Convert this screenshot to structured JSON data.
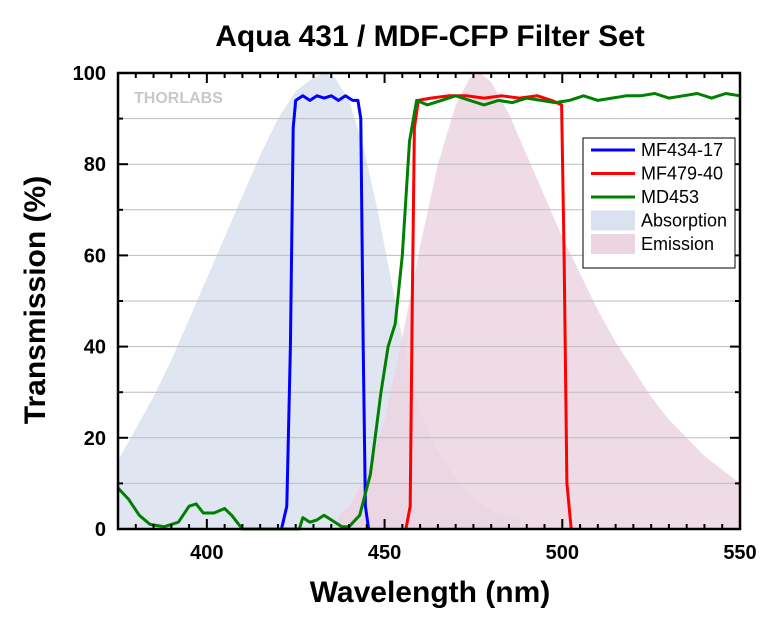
{
  "chart_data": {
    "type": "line",
    "title": "Aqua 431 / MDF-CFP Filter Set",
    "xlabel": "Wavelength (nm)",
    "ylabel": "Transmission (%)",
    "xlim": [
      375,
      550
    ],
    "ylim": [
      0,
      100
    ],
    "xticks": [
      400,
      450,
      500,
      550
    ],
    "yticks": [
      0,
      20,
      40,
      60,
      80,
      100
    ],
    "grid": true,
    "legend_position": "top-right",
    "watermark": "THORLABS",
    "series": [
      {
        "name": "MF434-17",
        "kind": "line",
        "color": "#0000ff",
        "points": [
          [
            421,
            0
          ],
          [
            422.5,
            5
          ],
          [
            423.5,
            40
          ],
          [
            424.3,
            88
          ],
          [
            425,
            94
          ],
          [
            427,
            95
          ],
          [
            429,
            94
          ],
          [
            431,
            95
          ],
          [
            433,
            94.5
          ],
          [
            435,
            95
          ],
          [
            437,
            94
          ],
          [
            439,
            95
          ],
          [
            441,
            94
          ],
          [
            442.5,
            94
          ],
          [
            443.3,
            90
          ],
          [
            444,
            40
          ],
          [
            444.6,
            5
          ],
          [
            445.5,
            0
          ]
        ]
      },
      {
        "name": "MF479-40",
        "kind": "line",
        "color": "#ff0000",
        "points": [
          [
            456,
            0
          ],
          [
            457.2,
            5
          ],
          [
            457.8,
            50
          ],
          [
            458.4,
            88
          ],
          [
            459.5,
            94
          ],
          [
            463,
            94.5
          ],
          [
            468,
            95
          ],
          [
            473,
            95
          ],
          [
            478,
            94.5
          ],
          [
            483,
            95
          ],
          [
            488,
            94.5
          ],
          [
            493,
            95
          ],
          [
            497,
            94
          ],
          [
            499.8,
            93
          ],
          [
            500.5,
            60
          ],
          [
            501.3,
            10
          ],
          [
            502.5,
            0
          ]
        ]
      },
      {
        "name": "MD453",
        "kind": "line",
        "color": "#008000",
        "points": [
          [
            375,
            9
          ],
          [
            378,
            6.5
          ],
          [
            381,
            3
          ],
          [
            384,
            1
          ],
          [
            388,
            0.5
          ],
          [
            392,
            1.5
          ],
          [
            395,
            5
          ],
          [
            397,
            5.5
          ],
          [
            399,
            3.5
          ],
          [
            402,
            3.5
          ],
          [
            405,
            4.5
          ],
          [
            407,
            3
          ],
          [
            409,
            1
          ],
          [
            410,
            0
          ],
          [
            426,
            0
          ],
          [
            427,
            2.5
          ],
          [
            429,
            1.5
          ],
          [
            431,
            2
          ],
          [
            433,
            3
          ],
          [
            435,
            2
          ],
          [
            438,
            0.5
          ],
          [
            440,
            0.5
          ],
          [
            443,
            3
          ],
          [
            446,
            12
          ],
          [
            449,
            30
          ],
          [
            451,
            40
          ],
          [
            453,
            45
          ],
          [
            455,
            60
          ],
          [
            457,
            85
          ],
          [
            459,
            94
          ],
          [
            462,
            93
          ],
          [
            466,
            94
          ],
          [
            470,
            95
          ],
          [
            474,
            94
          ],
          [
            478,
            93
          ],
          [
            482,
            94
          ],
          [
            486,
            93.5
          ],
          [
            490,
            94.5
          ],
          [
            494,
            94
          ],
          [
            498,
            93.5
          ],
          [
            502,
            94
          ],
          [
            506,
            95
          ],
          [
            510,
            94
          ],
          [
            514,
            94.5
          ],
          [
            518,
            95
          ],
          [
            522,
            95
          ],
          [
            526,
            95.5
          ],
          [
            530,
            94.5
          ],
          [
            534,
            95
          ],
          [
            538,
            95.5
          ],
          [
            542,
            94.5
          ],
          [
            546,
            95.5
          ],
          [
            550,
            95
          ]
        ]
      },
      {
        "name": "Absorption",
        "kind": "area",
        "color": "#dbe1f0",
        "points": [
          [
            375,
            15
          ],
          [
            380,
            22
          ],
          [
            385,
            29
          ],
          [
            390,
            37
          ],
          [
            395,
            46
          ],
          [
            400,
            55
          ],
          [
            405,
            64
          ],
          [
            410,
            73
          ],
          [
            415,
            82
          ],
          [
            420,
            90
          ],
          [
            425,
            96
          ],
          [
            430,
            99
          ],
          [
            433,
            100
          ],
          [
            436,
            99
          ],
          [
            440,
            94
          ],
          [
            444,
            84
          ],
          [
            448,
            70
          ],
          [
            452,
            54
          ],
          [
            456,
            38
          ],
          [
            460,
            26
          ],
          [
            465,
            17
          ],
          [
            470,
            11
          ],
          [
            475,
            7
          ],
          [
            480,
            4
          ],
          [
            485,
            3
          ],
          [
            488,
            2.5
          ],
          [
            488,
            0
          ]
        ]
      },
      {
        "name": "Emission",
        "kind": "area",
        "color": "#ecd5e0",
        "points": [
          [
            437,
            3
          ],
          [
            440,
            5
          ],
          [
            445,
            12
          ],
          [
            450,
            24
          ],
          [
            455,
            42
          ],
          [
            460,
            62
          ],
          [
            465,
            80
          ],
          [
            470,
            93
          ],
          [
            474,
            99
          ],
          [
            477,
            100
          ],
          [
            480,
            98
          ],
          [
            485,
            91
          ],
          [
            490,
            82
          ],
          [
            495,
            73
          ],
          [
            500,
            64
          ],
          [
            505,
            56
          ],
          [
            510,
            48
          ],
          [
            515,
            41
          ],
          [
            520,
            35
          ],
          [
            525,
            29
          ],
          [
            530,
            24
          ],
          [
            535,
            20
          ],
          [
            540,
            16
          ],
          [
            545,
            13
          ],
          [
            550,
            10
          ]
        ]
      }
    ]
  }
}
